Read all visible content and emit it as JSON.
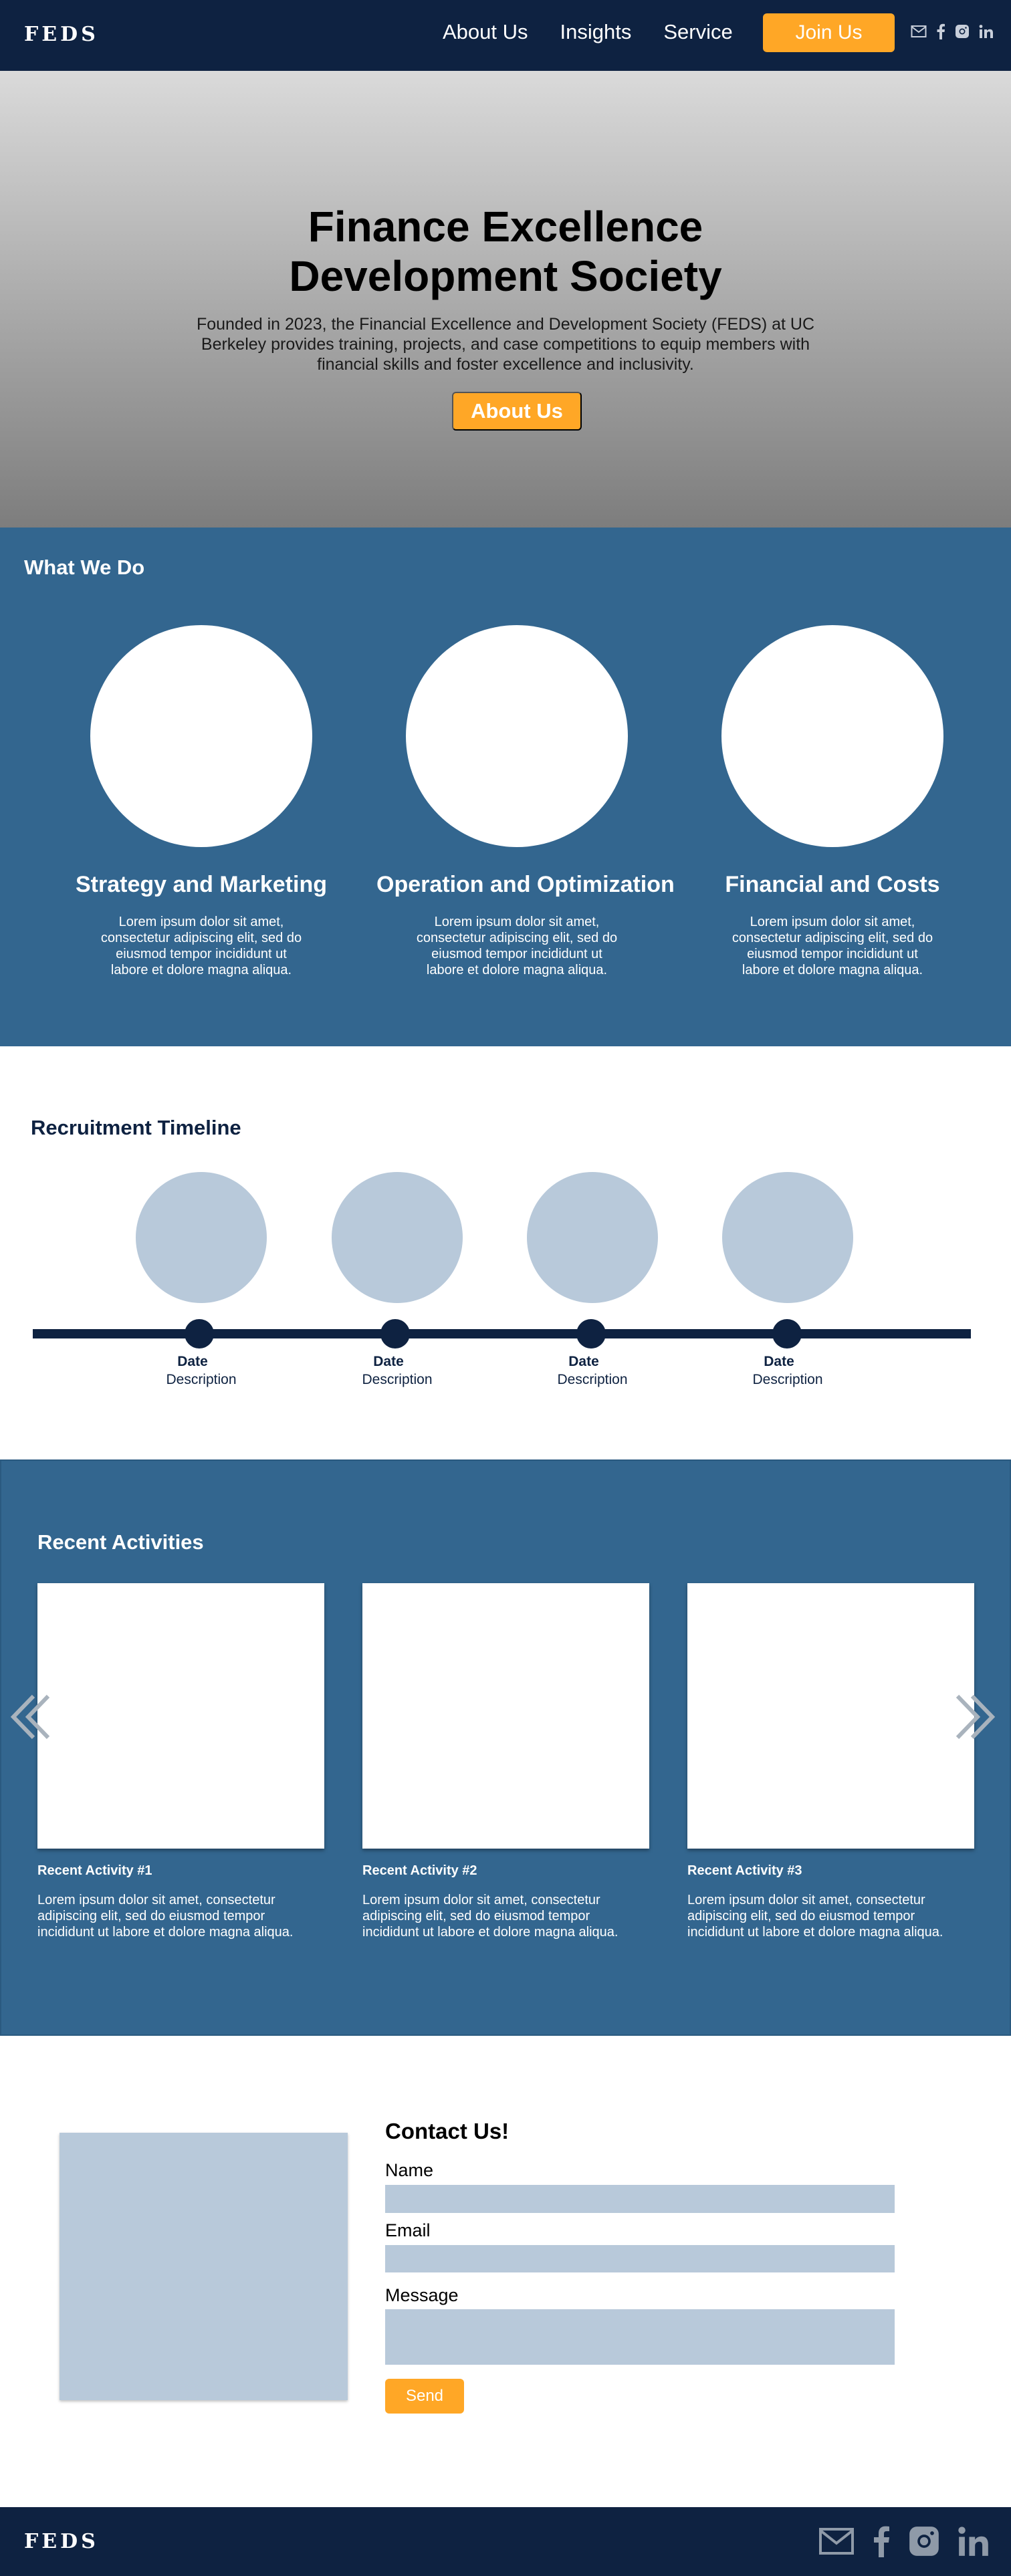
{
  "nav": {
    "logo": "FEDS",
    "links": [
      "About Us",
      "Insights",
      "Service"
    ],
    "join_label": "Join Us",
    "icons": [
      "mail-icon",
      "facebook-icon",
      "instagram-icon",
      "linkedin-icon"
    ]
  },
  "hero": {
    "title_line1": "Finance Excellence",
    "title_line2": "Development Society",
    "description": "Founded in 2023, the Financial Excellence and Development Society (FEDS) at UC Berkeley provides training, projects, and case competitions to equip members with financial skills and foster excellence and inclusivity.",
    "button_label": "About Us"
  },
  "what_we_do": {
    "title": "What We Do",
    "items": [
      {
        "title": "Strategy and Marketing",
        "text": "Lorem ipsum dolor sit amet, consectetur adipiscing elit, sed do eiusmod tempor incididunt ut labore et dolore magna aliqua."
      },
      {
        "title": "Operation and Optimization",
        "text": "Lorem ipsum dolor sit amet, consectetur adipiscing elit, sed do eiusmod tempor incididunt ut labore et dolore magna aliqua."
      },
      {
        "title": "Financial and Costs",
        "text": "Lorem ipsum dolor sit amet, consectetur adipiscing elit, sed do eiusmod tempor incididunt ut labore et dolore magna aliqua."
      }
    ]
  },
  "timeline": {
    "title": "Recruitment Timeline",
    "items": [
      {
        "date": "Date",
        "description": "Description"
      },
      {
        "date": "Date",
        "description": "Description"
      },
      {
        "date": "Date",
        "description": "Description"
      },
      {
        "date": "Date",
        "description": "Description"
      }
    ]
  },
  "activities": {
    "title": "Recent Activities",
    "items": [
      {
        "title": "Recent Activity #1",
        "text": "Lorem ipsum dolor sit amet, consectetur adipiscing elit, sed do eiusmod tempor incididunt ut labore et dolore magna aliqua."
      },
      {
        "title": "Recent Activity #2",
        "text": "Lorem ipsum dolor sit amet, consectetur adipiscing elit, sed do eiusmod tempor incididunt ut labore et dolore magna aliqua."
      },
      {
        "title": "Recent Activity #3",
        "text": "Lorem ipsum dolor sit amet, consectetur adipiscing elit, sed do eiusmod tempor incididunt ut labore et dolore magna aliqua."
      }
    ]
  },
  "contact": {
    "title": "Contact Us!",
    "name_label": "Name",
    "email_label": "Email",
    "message_label": "Message",
    "send_label": "Send"
  },
  "footer": {
    "logo": "FEDS",
    "icons": [
      "mail-icon",
      "facebook-icon",
      "instagram-icon",
      "linkedin-icon"
    ]
  },
  "colors": {
    "navy": "#0e2241",
    "blue": "#33668f",
    "orange": "#ffa726",
    "light_blue": "#b8c9da"
  }
}
